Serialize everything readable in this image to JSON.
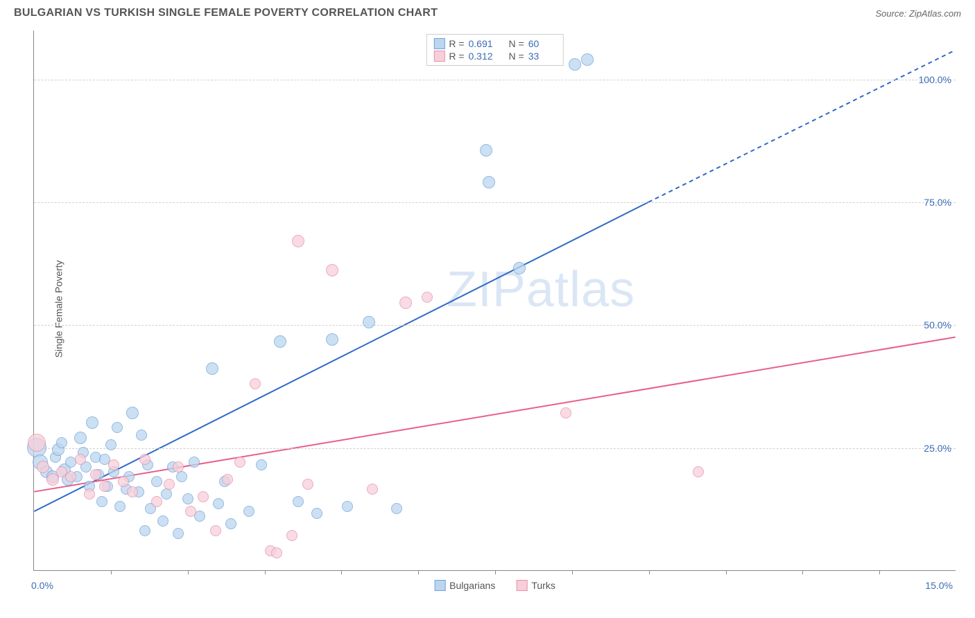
{
  "header": {
    "title": "BULGARIAN VS TURKISH SINGLE FEMALE POVERTY CORRELATION CHART",
    "source_prefix": "Source: ",
    "source_name": "ZipAtlas.com"
  },
  "chart": {
    "type": "scatter",
    "ylabel": "Single Female Poverty",
    "watermark_a": "ZIP",
    "watermark_b": "atlas",
    "background_color": "#ffffff",
    "grid_color": "#d0d0d0",
    "axis_color": "#888888",
    "tick_label_color": "#3b6db5",
    "x_axis": {
      "min": 0.0,
      "max": 15.0,
      "min_label": "0.0%",
      "max_label": "15.0%",
      "ticks": [
        1.25,
        2.5,
        3.75,
        5.0,
        6.25,
        7.5,
        8.75,
        10.0,
        11.25,
        12.5,
        13.75
      ]
    },
    "y_axis": {
      "min": 0.0,
      "max": 110.0,
      "gridlines": [
        {
          "v": 25.0,
          "label": "25.0%"
        },
        {
          "v": 50.0,
          "label": "50.0%"
        },
        {
          "v": 75.0,
          "label": "75.0%"
        },
        {
          "v": 100.0,
          "label": "100.0%"
        }
      ]
    },
    "series": [
      {
        "name": "Bulgarians",
        "fill": "#bcd6ef",
        "stroke": "#6fa3d8",
        "opacity": 0.75,
        "trend": {
          "color": "#2f69c6",
          "width": 2,
          "solid_x1": 0.0,
          "solid_y1": 12.0,
          "solid_x2": 10.0,
          "solid_y2": 75.0,
          "dash_x2": 15.0,
          "dash_y2": 106.0
        },
        "stats": {
          "R": "0.691",
          "N": "60"
        },
        "points": [
          {
            "x": 0.05,
            "y": 25.0,
            "r": 14
          },
          {
            "x": 0.1,
            "y": 22.0,
            "r": 11
          },
          {
            "x": 0.2,
            "y": 20.0,
            "r": 9
          },
          {
            "x": 0.3,
            "y": 19.0,
            "r": 9
          },
          {
            "x": 0.35,
            "y": 23.0,
            "r": 8
          },
          {
            "x": 0.4,
            "y": 24.5,
            "r": 9
          },
          {
            "x": 0.5,
            "y": 20.5,
            "r": 9
          },
          {
            "x": 0.55,
            "y": 18.5,
            "r": 9
          },
          {
            "x": 0.6,
            "y": 22.0,
            "r": 8
          },
          {
            "x": 0.7,
            "y": 19.0,
            "r": 8
          },
          {
            "x": 0.75,
            "y": 27.0,
            "r": 9
          },
          {
            "x": 0.8,
            "y": 24.0,
            "r": 8
          },
          {
            "x": 0.85,
            "y": 21.0,
            "r": 8
          },
          {
            "x": 0.9,
            "y": 17.0,
            "r": 8
          },
          {
            "x": 0.95,
            "y": 30.0,
            "r": 9
          },
          {
            "x": 1.0,
            "y": 23.0,
            "r": 8
          },
          {
            "x": 1.05,
            "y": 19.5,
            "r": 8
          },
          {
            "x": 1.1,
            "y": 14.0,
            "r": 8
          },
          {
            "x": 1.15,
            "y": 22.5,
            "r": 8
          },
          {
            "x": 1.2,
            "y": 17.0,
            "r": 8
          },
          {
            "x": 1.25,
            "y": 25.5,
            "r": 8
          },
          {
            "x": 1.3,
            "y": 20.0,
            "r": 8
          },
          {
            "x": 1.35,
            "y": 29.0,
            "r": 8
          },
          {
            "x": 1.4,
            "y": 13.0,
            "r": 8
          },
          {
            "x": 1.5,
            "y": 16.5,
            "r": 8
          },
          {
            "x": 1.55,
            "y": 19.0,
            "r": 8
          },
          {
            "x": 1.6,
            "y": 32.0,
            "r": 9
          },
          {
            "x": 1.7,
            "y": 16.0,
            "r": 8
          },
          {
            "x": 1.75,
            "y": 27.5,
            "r": 8
          },
          {
            "x": 1.8,
            "y": 8.0,
            "r": 8
          },
          {
            "x": 1.85,
            "y": 21.5,
            "r": 8
          },
          {
            "x": 1.9,
            "y": 12.5,
            "r": 8
          },
          {
            "x": 2.0,
            "y": 18.0,
            "r": 8
          },
          {
            "x": 2.1,
            "y": 10.0,
            "r": 8
          },
          {
            "x": 2.15,
            "y": 15.5,
            "r": 8
          },
          {
            "x": 2.25,
            "y": 21.0,
            "r": 8
          },
          {
            "x": 2.35,
            "y": 7.5,
            "r": 8
          },
          {
            "x": 2.4,
            "y": 19.0,
            "r": 8
          },
          {
            "x": 2.5,
            "y": 14.5,
            "r": 8
          },
          {
            "x": 2.6,
            "y": 22.0,
            "r": 8
          },
          {
            "x": 2.7,
            "y": 11.0,
            "r": 8
          },
          {
            "x": 2.9,
            "y": 41.0,
            "r": 9
          },
          {
            "x": 3.0,
            "y": 13.5,
            "r": 8
          },
          {
            "x": 3.1,
            "y": 18.0,
            "r": 8
          },
          {
            "x": 3.2,
            "y": 9.5,
            "r": 8
          },
          {
            "x": 3.5,
            "y": 12.0,
            "r": 8
          },
          {
            "x": 3.7,
            "y": 21.5,
            "r": 8
          },
          {
            "x": 4.0,
            "y": 46.5,
            "r": 9
          },
          {
            "x": 4.3,
            "y": 14.0,
            "r": 8
          },
          {
            "x": 4.6,
            "y": 11.5,
            "r": 8
          },
          {
            "x": 4.85,
            "y": 47.0,
            "r": 9
          },
          {
            "x": 5.1,
            "y": 13.0,
            "r": 8
          },
          {
            "x": 5.45,
            "y": 50.5,
            "r": 9
          },
          {
            "x": 5.9,
            "y": 12.5,
            "r": 8
          },
          {
            "x": 7.35,
            "y": 85.5,
            "r": 9
          },
          {
            "x": 7.4,
            "y": 79.0,
            "r": 9
          },
          {
            "x": 7.9,
            "y": 61.5,
            "r": 9
          },
          {
            "x": 8.8,
            "y": 103.0,
            "r": 9
          },
          {
            "x": 9.0,
            "y": 104.0,
            "r": 9
          },
          {
            "x": 0.45,
            "y": 26.0,
            "r": 8
          }
        ]
      },
      {
        "name": "Turks",
        "fill": "#f6cfda",
        "stroke": "#e890ab",
        "opacity": 0.75,
        "trend": {
          "color": "#e75f8a",
          "width": 2,
          "solid_x1": 0.0,
          "solid_y1": 16.0,
          "solid_x2": 15.0,
          "solid_y2": 47.5
        },
        "stats": {
          "R": "0.312",
          "N": "33"
        },
        "points": [
          {
            "x": 0.05,
            "y": 26.0,
            "r": 13
          },
          {
            "x": 0.15,
            "y": 21.0,
            "r": 9
          },
          {
            "x": 0.3,
            "y": 18.5,
            "r": 9
          },
          {
            "x": 0.45,
            "y": 20.0,
            "r": 8
          },
          {
            "x": 0.6,
            "y": 19.0,
            "r": 8
          },
          {
            "x": 0.75,
            "y": 22.5,
            "r": 8
          },
          {
            "x": 0.9,
            "y": 15.5,
            "r": 8
          },
          {
            "x": 1.0,
            "y": 19.5,
            "r": 8
          },
          {
            "x": 1.15,
            "y": 17.0,
            "r": 8
          },
          {
            "x": 1.3,
            "y": 21.5,
            "r": 8
          },
          {
            "x": 1.45,
            "y": 18.0,
            "r": 8
          },
          {
            "x": 1.6,
            "y": 16.0,
            "r": 8
          },
          {
            "x": 1.8,
            "y": 22.5,
            "r": 8
          },
          {
            "x": 2.0,
            "y": 14.0,
            "r": 8
          },
          {
            "x": 2.2,
            "y": 17.5,
            "r": 8
          },
          {
            "x": 2.35,
            "y": 21.0,
            "r": 8
          },
          {
            "x": 2.55,
            "y": 12.0,
            "r": 8
          },
          {
            "x": 2.75,
            "y": 15.0,
            "r": 8
          },
          {
            "x": 2.95,
            "y": 8.0,
            "r": 8
          },
          {
            "x": 3.15,
            "y": 18.5,
            "r": 8
          },
          {
            "x": 3.35,
            "y": 22.0,
            "r": 8
          },
          {
            "x": 3.6,
            "y": 38.0,
            "r": 8
          },
          {
            "x": 3.85,
            "y": 4.0,
            "r": 8
          },
          {
            "x": 3.95,
            "y": 3.5,
            "r": 8
          },
          {
            "x": 4.2,
            "y": 7.0,
            "r": 8
          },
          {
            "x": 4.3,
            "y": 67.0,
            "r": 9
          },
          {
            "x": 4.45,
            "y": 17.5,
            "r": 8
          },
          {
            "x": 4.85,
            "y": 61.0,
            "r": 9
          },
          {
            "x": 5.5,
            "y": 16.5,
            "r": 8
          },
          {
            "x": 6.05,
            "y": 54.5,
            "r": 9
          },
          {
            "x": 6.4,
            "y": 55.5,
            "r": 8
          },
          {
            "x": 8.65,
            "y": 32.0,
            "r": 8
          },
          {
            "x": 10.8,
            "y": 20.0,
            "r": 8
          }
        ]
      }
    ],
    "stats_legend_labels": {
      "R": "R =",
      "N": "N ="
    }
  }
}
